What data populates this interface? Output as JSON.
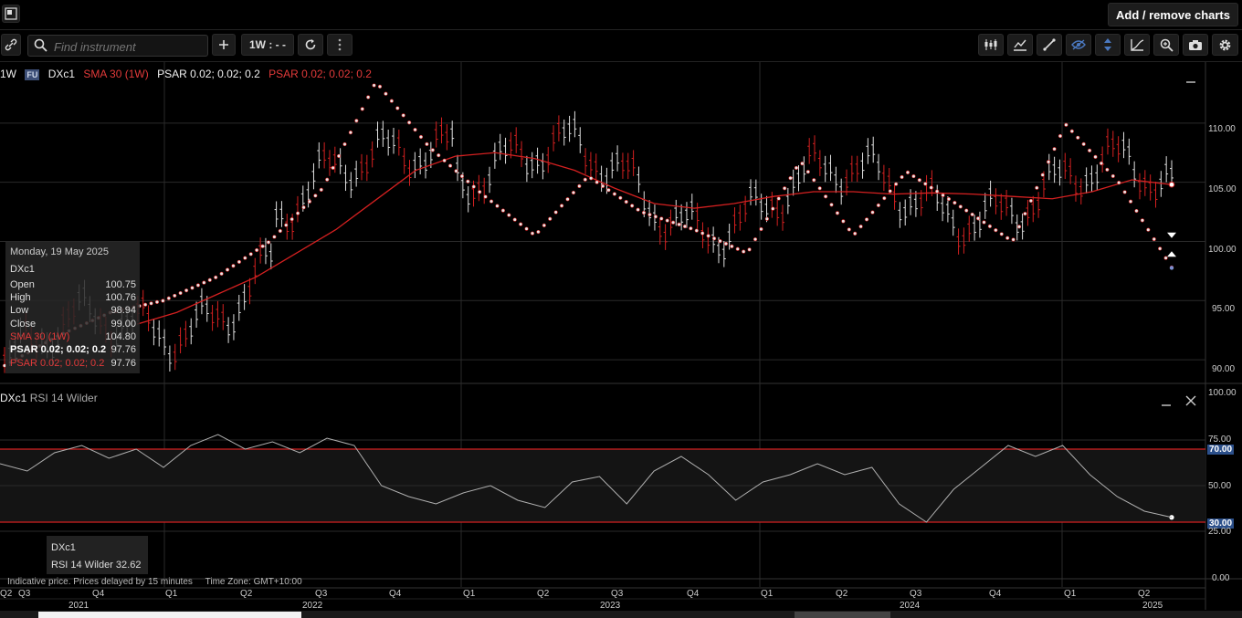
{
  "topbar": {
    "add_remove": "Add / remove charts"
  },
  "toolbar": {
    "search_placeholder": "Find instrument",
    "interval": "1W : - -"
  },
  "legend": {
    "interval": "1W",
    "badge": "FU",
    "symbol": "DXc1",
    "sma": "SMA 30 (1W)",
    "psar_white": "PSAR 0.02; 0.02; 0.2",
    "psar_red": "PSAR 0.02; 0.02; 0.2"
  },
  "tooltip": {
    "date": "Monday, 19 May 2025",
    "symbol": "DXc1",
    "rows": [
      {
        "label": "Open",
        "value": "100.75"
      },
      {
        "label": "High",
        "value": "100.76"
      },
      {
        "label": "Low",
        "value": "98.94"
      },
      {
        "label": "Close",
        "value": "99.00"
      },
      {
        "label": "SMA 30 (1W)",
        "value": "104.80"
      },
      {
        "label": "PSAR 0.02; 0.02; 0.2",
        "value": "97.76"
      },
      {
        "label": "PSAR 0.02; 0.02; 0.2",
        "value": "97.76"
      }
    ]
  },
  "rsi": {
    "symbol": "DXc1",
    "label": "RSI 14 Wilder",
    "tip_symbol": "DXc1",
    "tip_value": "RSI 14 Wilder 32.62"
  },
  "footer": {
    "note": "Indicative price. Prices delayed by 15 minutes",
    "tz": "Time Zone: GMT+10:00"
  },
  "price_axis": [
    "110.00",
    "105.00",
    "100.00",
    "95.00",
    "90.00"
  ],
  "rsi_axis": [
    "100.00",
    "75.00",
    "70.00",
    "50.00",
    "30.00",
    "25.00",
    "0.00"
  ],
  "quarters": [
    "Q2",
    "Q3",
    "Q4",
    "Q1",
    "Q2",
    "Q3",
    "Q4",
    "Q1",
    "Q2",
    "Q3",
    "Q4",
    "Q1",
    "Q2",
    "Q3",
    "Q4",
    "Q1",
    "Q2"
  ],
  "years": [
    "2021",
    "2022",
    "2023",
    "2024",
    "2025"
  ],
  "colors": {
    "sma": "#d42020",
    "psar": "#e8e8e8",
    "up_bar": "#e0e0e0",
    "down_bar": "#d42020",
    "rsi_line": "#b0b0b0",
    "rsi_band": "#d42020",
    "highlight": "#2b4f8a"
  },
  "chart_data": [
    {
      "type": "line",
      "title": "DXc1",
      "ylim": [
        88,
        115
      ],
      "sma_30": [
        93,
        94,
        95.5,
        97,
        99,
        101,
        103.5,
        106,
        107.2,
        107.5,
        107,
        106,
        104.5,
        103.2,
        102.8,
        103.2,
        103.8,
        104.2,
        104.2,
        104,
        104.1,
        104,
        103.8,
        103.6,
        104.2,
        105.2,
        104.8
      ],
      "psar_values": [
        89.5,
        92,
        94,
        95,
        97,
        100,
        104.5,
        113.5,
        108,
        104,
        100.5,
        105.5,
        102.5,
        101,
        99,
        106.8,
        100.5,
        105.9,
        103,
        100,
        109.9,
        105,
        97.8
      ],
      "grid": true
    },
    {
      "type": "line",
      "title": "RSI 14 Wilder",
      "ylim": [
        0,
        100
      ],
      "bands": [
        30,
        70
      ],
      "values": [
        62,
        58,
        68,
        72,
        65,
        70,
        60,
        72,
        78,
        70,
        74,
        68,
        76,
        72,
        50,
        44,
        40,
        46,
        50,
        42,
        38,
        52,
        55,
        40,
        58,
        66,
        56,
        42,
        52,
        56,
        62,
        56,
        60,
        40,
        30,
        48,
        60,
        72,
        66,
        72,
        56,
        44,
        36,
        32.62
      ],
      "grid": true
    }
  ]
}
